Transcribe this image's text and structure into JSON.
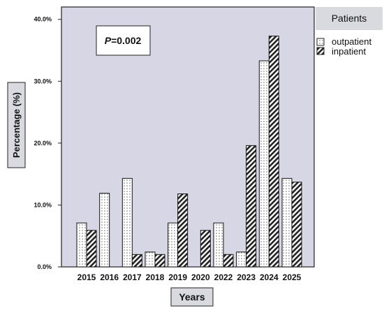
{
  "chart_data": {
    "type": "bar",
    "categories": [
      "2015",
      "2016",
      "2017",
      "2018",
      "2019",
      "2020",
      "2022",
      "2023",
      "2024",
      "2025"
    ],
    "series": [
      {
        "name": "outpatient",
        "values": [
          7.1,
          11.9,
          14.3,
          2.4,
          7.1,
          0,
          7.1,
          2.4,
          33.3,
          14.3
        ]
      },
      {
        "name": "inpatient",
        "values": [
          5.9,
          0,
          2.0,
          2.0,
          11.8,
          5.9,
          2.0,
          19.6,
          37.3,
          13.7
        ]
      }
    ],
    "ylim": [
      0,
      42
    ],
    "yticks": [
      0,
      10,
      20,
      30,
      40
    ],
    "ytick_labels": [
      "0.0%",
      "10.0%",
      "20.0%",
      "30.0%",
      "40.0%"
    ],
    "xlabel": "Years",
    "ylabel": "Percentage (%)",
    "legend": {
      "title": "Patients",
      "placement": "right"
    },
    "annotation": {
      "italic": "P",
      "rest": "=0.002"
    },
    "colors": {
      "plot_background": "#d7d6e4",
      "bar_fill": "#ffffff",
      "stroke": "#111111",
      "label_box": "#d9d9e0"
    }
  }
}
